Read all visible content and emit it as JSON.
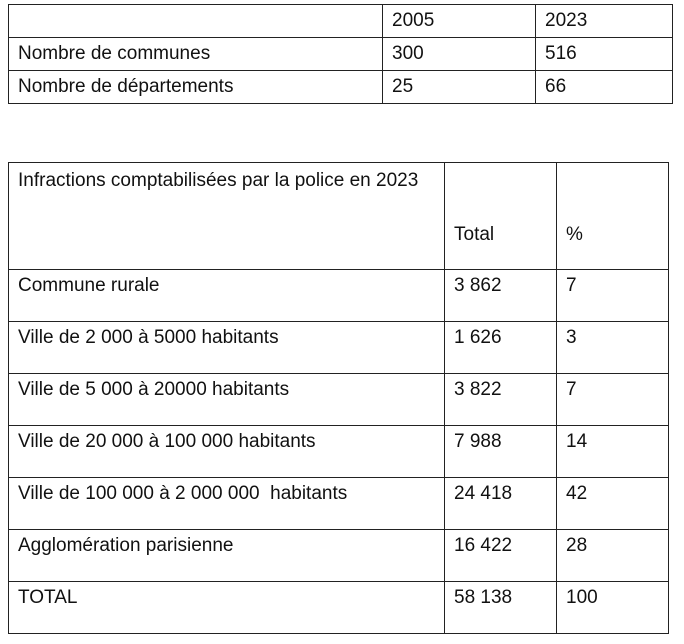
{
  "table1": {
    "header": [
      "2005",
      "2023"
    ],
    "rows": [
      [
        "Nombre de communes",
        "300",
        "516"
      ],
      [
        "Nombre de départements",
        "25",
        "66"
      ]
    ]
  },
  "table2": {
    "header": [
      "Infractions comptabilisées par la police en 2023",
      "Total",
      "%"
    ],
    "rows": [
      [
        "Commune rurale",
        "3 862",
        "7"
      ],
      [
        "Ville de 2 000 à 5000 habitants",
        "1 626",
        "3"
      ],
      [
        "Ville de 5 000 à 20000 habitants",
        "3 822",
        "7"
      ],
      [
        "Ville de 20 000 à 100 000 habitants",
        "7 988",
        "14"
      ],
      [
        "Ville de 100 000 à 2 000 000  habitants",
        "24 418",
        "42"
      ],
      [
        "Agglomération parisienne",
        "16 422",
        "28"
      ],
      [
        "TOTAL",
        "58 138",
        "100"
      ]
    ]
  }
}
